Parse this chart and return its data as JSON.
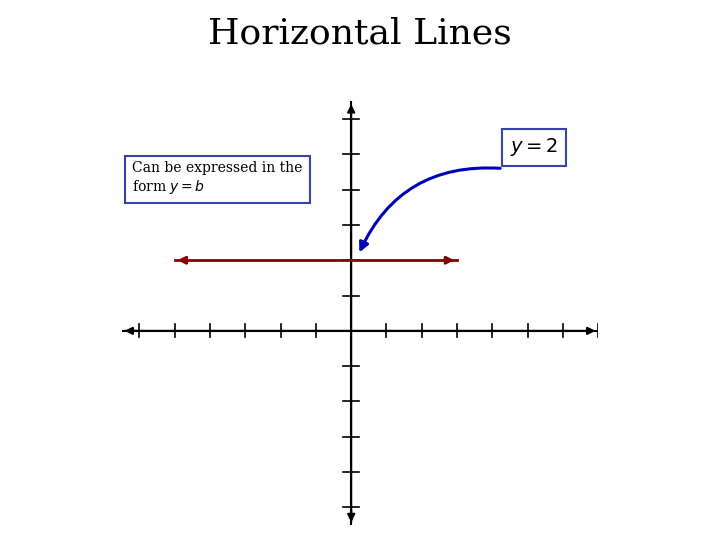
{
  "title": "Horizontal Lines",
  "title_fontsize": 26,
  "background_color": "#ffffff",
  "axis_color": "#000000",
  "hline_color": "#8B0000",
  "hline_y": 2,
  "hline_xmin": -5,
  "hline_xmax": 3,
  "xlim": [
    -6.5,
    7.0
  ],
  "ylim": [
    -5.5,
    6.5
  ],
  "arrow_color": "#0000BB",
  "label_box_edgecolor": "#3344aa",
  "textbox_edgecolor": "#3344aa",
  "tick_lw": 1.2,
  "axis_lw": 1.5,
  "hline_lw": 2.0
}
